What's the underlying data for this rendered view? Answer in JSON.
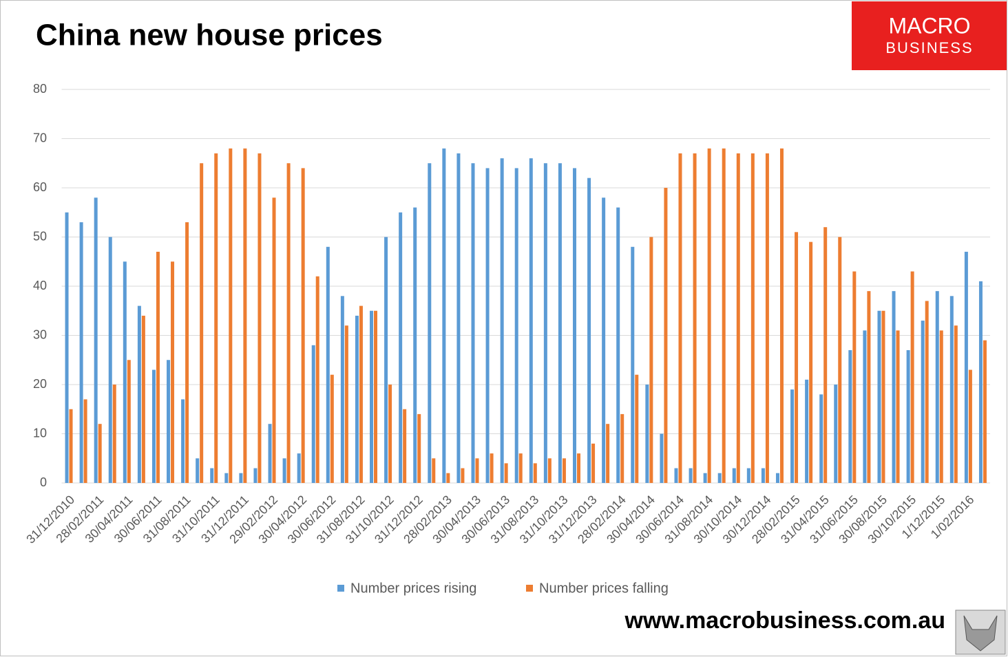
{
  "chart_data": {
    "type": "bar",
    "title": "China new house prices",
    "brand": [
      "MACRO",
      "BUSINESS"
    ],
    "source": "www.macrobusiness.com.au",
    "categories": [
      "31/12/2010",
      null,
      "28/02/2011",
      null,
      "30/04/2011",
      null,
      "30/06/2011",
      null,
      "31/08/2011",
      null,
      "31/10/2011",
      null,
      "31/12/2011",
      null,
      "29/02/2012",
      null,
      "30/04/2012",
      null,
      "30/06/2012",
      null,
      "31/08/2012",
      null,
      "31/10/2012",
      null,
      "31/12/2012",
      null,
      "28/02/2013",
      null,
      "30/04/2013",
      null,
      "30/06/2013",
      null,
      "31/08/2013",
      null,
      "31/10/2013",
      null,
      "31/12/2013",
      null,
      "28/02/2014",
      null,
      "30/04/2014",
      null,
      "30/06/2014",
      null,
      "31/08/2014",
      null,
      "30/10/2014",
      null,
      "30/12/2014",
      null,
      "28/02/2015",
      null,
      "31/04/2015",
      null,
      "31/06/2015",
      null,
      "30/08/2015",
      null,
      "30/10/2015",
      null,
      "1/12/2015",
      null,
      "1/02/2016",
      null
    ],
    "series": [
      {
        "name": "Number prices rising",
        "color": "#5b9bd5",
        "values": [
          55,
          53,
          58,
          50,
          45,
          36,
          23,
          25,
          17,
          5,
          3,
          2,
          2,
          3,
          12,
          5,
          6,
          28,
          48,
          38,
          34,
          35,
          50,
          55,
          56,
          65,
          68,
          67,
          65,
          64,
          66,
          64,
          66,
          65,
          65,
          64,
          62,
          58,
          56,
          48,
          20,
          10,
          3,
          3,
          2,
          2,
          3,
          3,
          3,
          2,
          19,
          21,
          18,
          20,
          27,
          31,
          35,
          39,
          27,
          33,
          39,
          38,
          47,
          41
        ]
      },
      {
        "name": "Number prices falling",
        "color": "#ed7d31",
        "values": [
          15,
          17,
          12,
          20,
          25,
          34,
          47,
          45,
          53,
          65,
          67,
          68,
          68,
          67,
          58,
          65,
          64,
          42,
          22,
          32,
          36,
          35,
          20,
          15,
          14,
          5,
          2,
          3,
          5,
          6,
          4,
          6,
          4,
          5,
          5,
          6,
          8,
          12,
          14,
          22,
          50,
          60,
          67,
          67,
          68,
          68,
          67,
          67,
          67,
          68,
          51,
          49,
          52,
          50,
          43,
          39,
          35,
          31,
          43,
          37,
          31,
          32,
          23,
          29
        ]
      }
    ],
    "ylim": [
      0,
      80
    ],
    "yticks": [
      0,
      10,
      20,
      30,
      40,
      50,
      60,
      70,
      80
    ],
    "grid": true,
    "legend": "bottom"
  }
}
